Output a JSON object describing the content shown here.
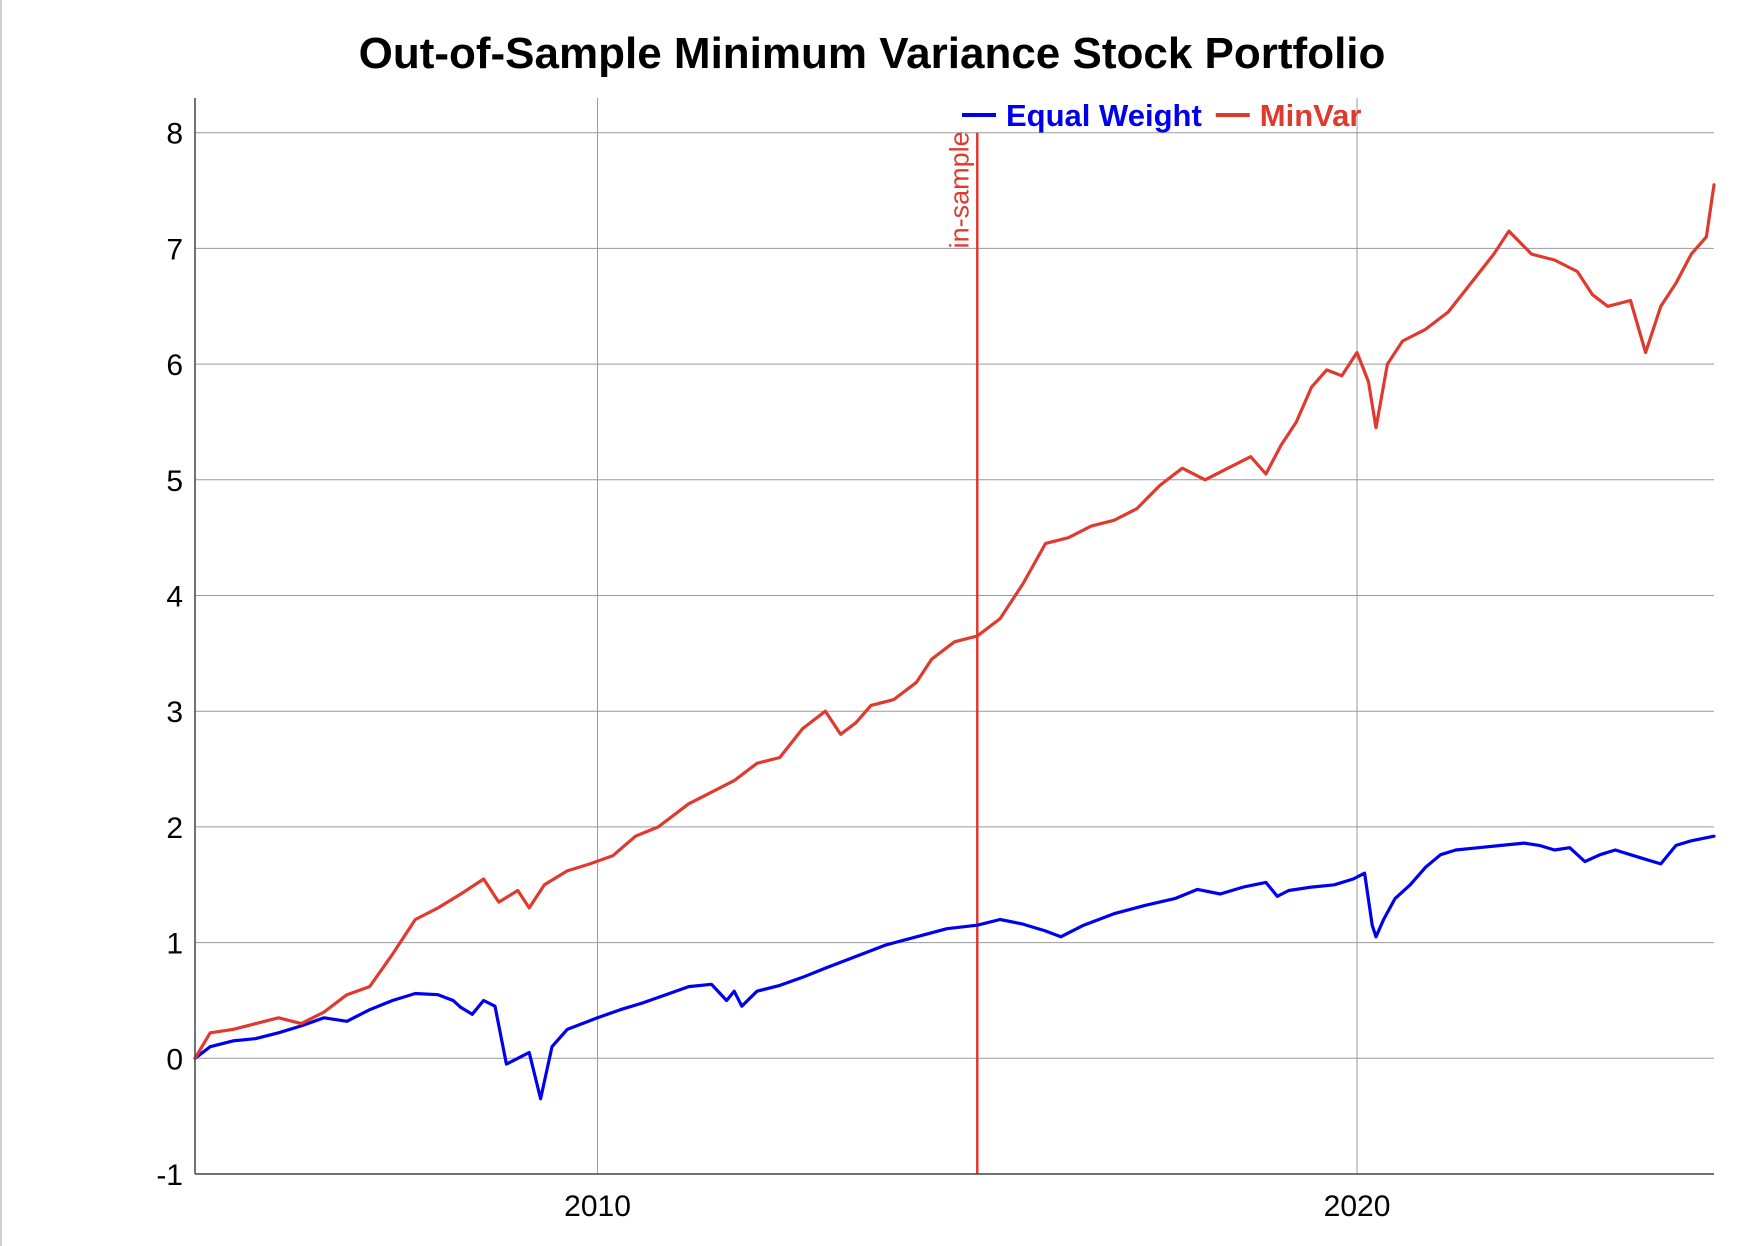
{
  "chart_data": {
    "type": "line",
    "title": "Out-of-Sample Minimum Variance Stock Portfolio",
    "xlabel": "",
    "ylabel": "",
    "x_range": [
      2004.7,
      2024.7
    ],
    "ylim": [
      -1,
      8.3
    ],
    "y_ticks": [
      "-1",
      "0",
      "1",
      "2",
      "3",
      "4",
      "5",
      "6",
      "7",
      "8"
    ],
    "x_ticks": [
      "2010",
      "2020"
    ],
    "grid": true,
    "legend": "top-center",
    "vertical_marker": {
      "x": 2015.0,
      "label": "in-sample",
      "color": "#e03a2e"
    },
    "series": [
      {
        "name": "Equal Weight",
        "color": "#0000ee",
        "x": [
          2004.7,
          2004.9,
          2005.2,
          2005.5,
          2005.8,
          2006.1,
          2006.4,
          2006.7,
          2007.0,
          2007.3,
          2007.6,
          2007.9,
          2008.1,
          2008.2,
          2008.35,
          2008.5,
          2008.65,
          2008.8,
          2008.95,
          2009.1,
          2009.25,
          2009.4,
          2009.6,
          2009.8,
          2010.0,
          2010.3,
          2010.6,
          2010.9,
          2011.2,
          2011.5,
          2011.7,
          2011.8,
          2011.9,
          2012.1,
          2012.4,
          2012.7,
          2013.0,
          2013.4,
          2013.8,
          2014.2,
          2014.6,
          2015.0,
          2015.3,
          2015.6,
          2015.9,
          2016.1,
          2016.4,
          2016.8,
          2017.2,
          2017.6,
          2017.9,
          2018.2,
          2018.5,
          2018.8,
          2018.95,
          2019.1,
          2019.4,
          2019.7,
          2019.95,
          2020.1,
          2020.2,
          2020.25,
          2020.35,
          2020.5,
          2020.7,
          2020.9,
          2021.1,
          2021.3,
          2021.6,
          2021.9,
          2022.2,
          2022.4,
          2022.6,
          2022.8,
          2023.0,
          2023.2,
          2023.4,
          2023.6,
          2023.8,
          2024.0,
          2024.2,
          2024.4,
          2024.7
        ],
        "values": [
          0.0,
          0.1,
          0.15,
          0.17,
          0.22,
          0.28,
          0.35,
          0.32,
          0.42,
          0.5,
          0.56,
          0.55,
          0.5,
          0.44,
          0.38,
          0.5,
          0.45,
          -0.05,
          0.0,
          0.05,
          -0.35,
          0.1,
          0.25,
          0.3,
          0.35,
          0.42,
          0.48,
          0.55,
          0.62,
          0.64,
          0.5,
          0.58,
          0.45,
          0.58,
          0.63,
          0.7,
          0.78,
          0.88,
          0.98,
          1.05,
          1.12,
          1.15,
          1.2,
          1.16,
          1.1,
          1.05,
          1.15,
          1.25,
          1.32,
          1.38,
          1.46,
          1.42,
          1.48,
          1.52,
          1.4,
          1.45,
          1.48,
          1.5,
          1.55,
          1.6,
          1.15,
          1.05,
          1.2,
          1.38,
          1.5,
          1.65,
          1.76,
          1.8,
          1.82,
          1.84,
          1.86,
          1.84,
          1.8,
          1.82,
          1.7,
          1.76,
          1.8,
          1.76,
          1.72,
          1.68,
          1.84,
          1.88,
          1.92
        ]
      },
      {
        "name": "MinVar",
        "color": "#e03a2e",
        "x": [
          2004.7,
          2004.9,
          2005.2,
          2005.5,
          2005.8,
          2006.1,
          2006.4,
          2006.7,
          2007.0,
          2007.3,
          2007.6,
          2007.9,
          2008.2,
          2008.5,
          2008.7,
          2008.95,
          2009.1,
          2009.3,
          2009.6,
          2009.9,
          2010.2,
          2010.5,
          2010.8,
          2011.2,
          2011.5,
          2011.8,
          2012.1,
          2012.4,
          2012.7,
          2013.0,
          2013.2,
          2013.4,
          2013.6,
          2013.9,
          2014.2,
          2014.4,
          2014.7,
          2015.0,
          2015.3,
          2015.6,
          2015.9,
          2016.2,
          2016.5,
          2016.8,
          2017.1,
          2017.4,
          2017.7,
          2018.0,
          2018.3,
          2018.6,
          2018.8,
          2019.0,
          2019.2,
          2019.4,
          2019.6,
          2019.8,
          2020.0,
          2020.15,
          2020.25,
          2020.4,
          2020.6,
          2020.9,
          2021.2,
          2021.5,
          2021.8,
          2022.0,
          2022.3,
          2022.6,
          2022.9,
          2023.1,
          2023.3,
          2023.6,
          2023.8,
          2024.0,
          2024.2,
          2024.4,
          2024.6,
          2024.7
        ],
        "values": [
          0.0,
          0.22,
          0.25,
          0.3,
          0.35,
          0.3,
          0.4,
          0.55,
          0.62,
          0.9,
          1.2,
          1.3,
          1.42,
          1.55,
          1.35,
          1.45,
          1.3,
          1.5,
          1.62,
          1.68,
          1.75,
          1.92,
          2.0,
          2.2,
          2.3,
          2.4,
          2.55,
          2.6,
          2.85,
          3.0,
          2.8,
          2.9,
          3.05,
          3.1,
          3.25,
          3.45,
          3.6,
          3.65,
          3.8,
          4.1,
          4.45,
          4.5,
          4.6,
          4.65,
          4.75,
          4.95,
          5.1,
          5.0,
          5.1,
          5.2,
          5.05,
          5.3,
          5.5,
          5.8,
          5.95,
          5.9,
          6.1,
          5.85,
          5.45,
          6.0,
          6.2,
          6.3,
          6.45,
          6.7,
          6.95,
          7.15,
          6.95,
          6.9,
          6.8,
          6.6,
          6.5,
          6.55,
          6.1,
          6.5,
          6.7,
          6.95,
          7.1,
          7.55
        ]
      }
    ]
  }
}
